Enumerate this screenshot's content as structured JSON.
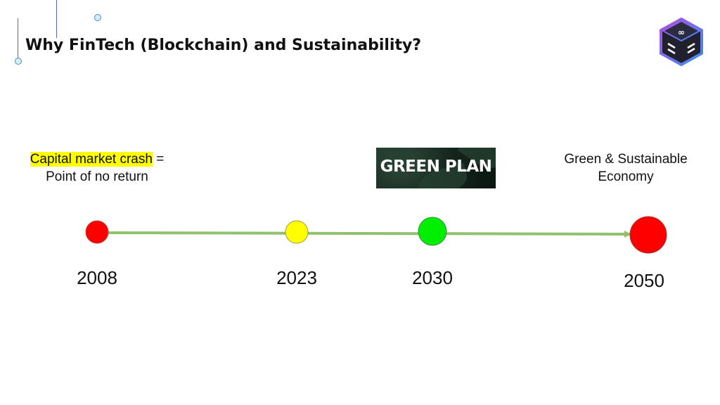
{
  "title": "Why FinTech (Blockchain) and Sustainability?",
  "left_label": {
    "highlighted": "Capital market crash",
    "suffix": " =",
    "line2": "Point of no return"
  },
  "green_plan_text": "GREEN PLAN",
  "right_label": {
    "line1": "Green & Sustainable",
    "line2": "Economy"
  },
  "timeline": {
    "line_color": "#8fc16e",
    "milestones": [
      {
        "year": "2008",
        "color": "#ff0000"
      },
      {
        "year": "2023",
        "color": "#ffff00"
      },
      {
        "year": "2030",
        "color": "#00ee00"
      },
      {
        "year": "2050",
        "color": "#ff0000"
      }
    ]
  },
  "logo": {
    "icon": "cube-logo-icon",
    "colors": [
      "#8a4fd8",
      "#4a8ee8",
      "#2a2a3a"
    ]
  }
}
